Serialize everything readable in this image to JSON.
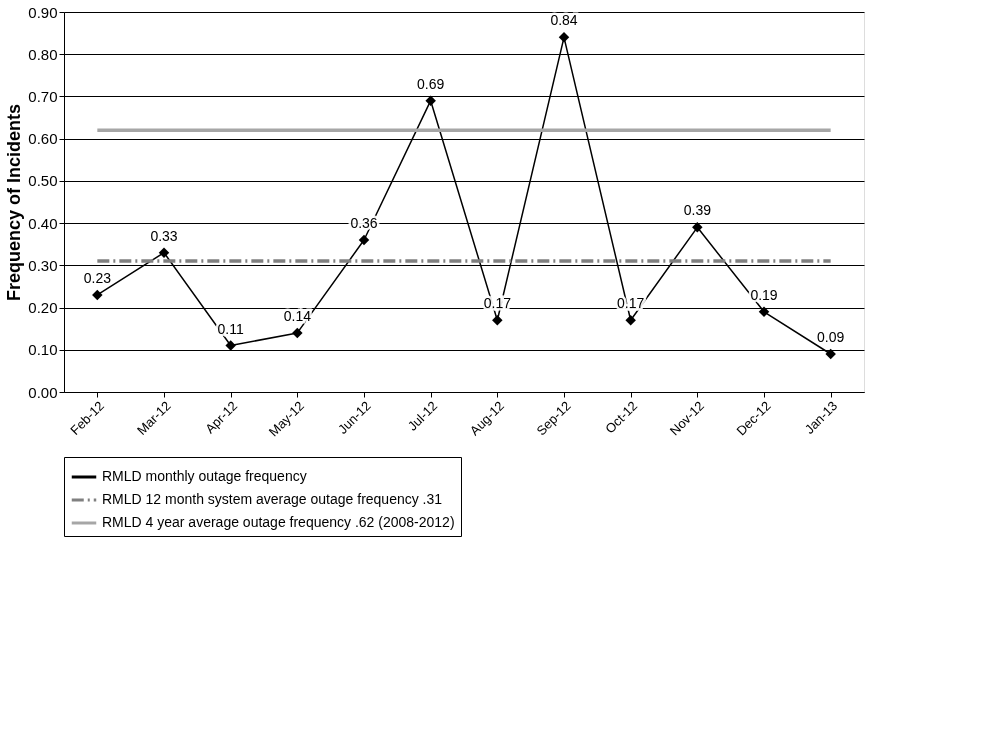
{
  "chart_data": {
    "type": "line",
    "ylabel": "Frequency of Incidents",
    "categories": [
      "Feb-12",
      "Mar-12",
      "Apr-12",
      "May-12",
      "Jun-12",
      "Jul-12",
      "Aug-12",
      "Sep-12",
      "Oct-12",
      "Nov-12",
      "Dec-12",
      "Jan-13"
    ],
    "series": [
      {
        "name": "RMLD monthly outage frequency",
        "color": "#000000",
        "marker": "diamond",
        "line_style": "solid",
        "values": [
          0.23,
          0.33,
          0.11,
          0.14,
          0.36,
          0.69,
          0.17,
          0.84,
          0.17,
          0.39,
          0.19,
          0.09
        ],
        "value_labels": [
          "0.23",
          "0.33",
          "0.11",
          "0.14",
          "0.36",
          "0.69",
          "0.17",
          "0.84",
          "0.17",
          "0.39",
          "0.19",
          "0.09"
        ]
      },
      {
        "name": "RMLD 12 month system average outage frequency .31",
        "color": "#808080",
        "marker": "none",
        "line_style": "dashed",
        "values": [
          0.31,
          0.31,
          0.31,
          0.31,
          0.31,
          0.31,
          0.31,
          0.31,
          0.31,
          0.31,
          0.31,
          0.31
        ]
      },
      {
        "name": "RMLD 4 year average outage frequency .62 (2008-2012)",
        "color": "#a6a6a6",
        "marker": "none",
        "line_style": "solid",
        "values": [
          0.62,
          0.62,
          0.62,
          0.62,
          0.62,
          0.62,
          0.62,
          0.62,
          0.62,
          0.62,
          0.62,
          0.62
        ]
      }
    ],
    "ylim": [
      0,
      0.9
    ],
    "yticks": [
      {
        "value": 0,
        "label": "0.00"
      },
      {
        "value": 0.1,
        "label": "0.10"
      },
      {
        "value": 0.2,
        "label": "0.20"
      },
      {
        "value": 0.3,
        "label": "0.30"
      },
      {
        "value": 0.4,
        "label": "0.40"
      },
      {
        "value": 0.5,
        "label": "0.50"
      },
      {
        "value": 0.6,
        "label": "0.60"
      },
      {
        "value": 0.7,
        "label": "0.70"
      },
      {
        "value": 0.8,
        "label": "0.80"
      },
      {
        "value": 0.9,
        "label": "0.90"
      }
    ],
    "grid": "y",
    "legend": "bottom"
  }
}
